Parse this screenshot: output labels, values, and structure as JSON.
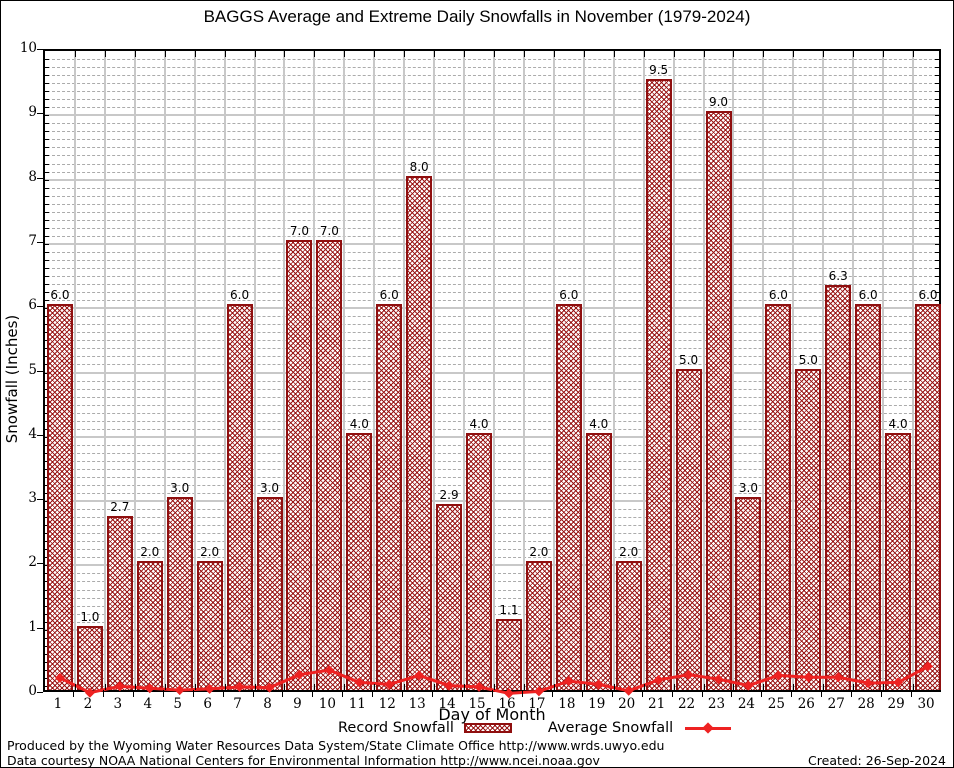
{
  "title": "BAGGS Average and Extreme Daily Snowfalls in November (1979-2024)",
  "chart_data": {
    "type": "bar",
    "title": "BAGGS Average and Extreme Daily Snowfalls in November (1979-2024)",
    "xlabel": "Day of Month",
    "ylabel": "Snowfall (Inches)",
    "ylim": [
      0,
      10
    ],
    "y_major_step": 1,
    "grid": "major solid gray, minor dashed",
    "legend_position": "bottom",
    "categories": [
      1,
      2,
      3,
      4,
      5,
      6,
      7,
      8,
      9,
      10,
      11,
      12,
      13,
      14,
      15,
      16,
      17,
      18,
      19,
      20,
      21,
      22,
      23,
      24,
      25,
      26,
      27,
      28,
      29,
      30
    ],
    "series": [
      {
        "name": "Record Snowfall",
        "type": "bar",
        "values": [
          6.0,
          1.0,
          2.7,
          2.0,
          3.0,
          2.0,
          6.0,
          3.0,
          7.0,
          7.0,
          4.0,
          6.0,
          8.0,
          2.9,
          4.0,
          1.1,
          2.0,
          6.0,
          4.0,
          2.0,
          9.5,
          5.0,
          9.0,
          3.0,
          6.0,
          5.0,
          6.3,
          6.0,
          4.0,
          6.0
        ],
        "labels": [
          "6.0",
          "1.0",
          "2.7",
          "2.0",
          "3.0",
          "2.0",
          "6.0",
          "3.0",
          "7.0",
          "7.0",
          "4.0",
          "6.0",
          "8.0",
          "2.9",
          "4.0",
          "1.1",
          "2.0",
          "6.0",
          "4.0",
          "2.0",
          "9.5",
          "5.0",
          "9.0",
          "3.0",
          "6.0",
          "5.0",
          "6.3",
          "6.0",
          "4.0",
          "6.0"
        ]
      },
      {
        "name": "Average Snowfall",
        "type": "line",
        "values": [
          0.25,
          0.02,
          0.12,
          0.09,
          0.06,
          0.08,
          0.11,
          0.1,
          0.3,
          0.37,
          0.18,
          0.15,
          0.29,
          0.13,
          0.11,
          0.01,
          0.04,
          0.2,
          0.15,
          0.05,
          0.22,
          0.3,
          0.23,
          0.13,
          0.29,
          0.26,
          0.26,
          0.17,
          0.18,
          0.43
        ]
      }
    ],
    "y_ticks": [
      "0",
      "1",
      "2",
      "3",
      "4",
      "5",
      "6",
      "7",
      "8",
      "9",
      "10"
    ]
  },
  "axes": {
    "y_label": "Snowfall (Inches)",
    "x_label": "Day of Month"
  },
  "legend": {
    "record_label": "Record Snowfall",
    "average_label": "Average Snowfall"
  },
  "colors": {
    "bar_border": "#8f0f0f",
    "bar_hatch": "#960e0e",
    "line": "#ee2222",
    "grid_major": "#c8c8c8",
    "grid_minor": "#ababab"
  },
  "footer": {
    "line1": "Produced by the Wyoming Water Resources Data System/State Climate Office http://www.wrds.uwyo.edu",
    "line2": "Data courtesy NOAA National Centers for Environmental Information http://www.ncei.noaa.gov",
    "created": "Created: 26-Sep-2024"
  }
}
